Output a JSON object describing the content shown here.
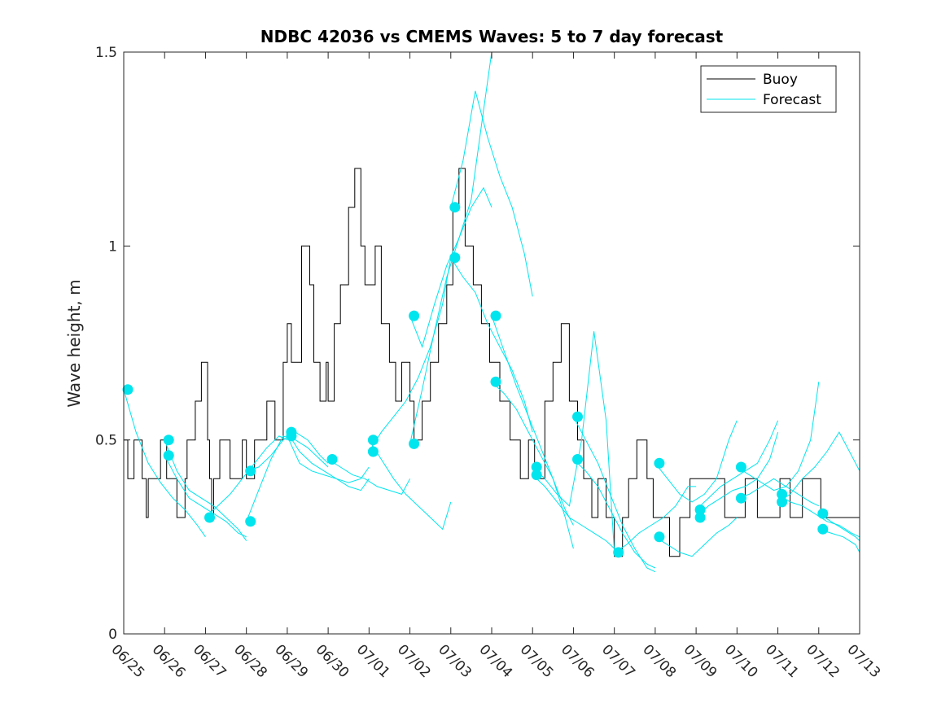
{
  "chart_data": {
    "type": "line",
    "title": "NDBC 42036 vs CMEMS Waves: 5 to 7 day forecast",
    "xlabel": "",
    "ylabel": "Wave height, m",
    "xlim": [
      "06/25",
      "07/13"
    ],
    "ylim": [
      0,
      1.5
    ],
    "x_tick_labels": [
      "06/25",
      "06/26",
      "06/27",
      "06/28",
      "06/29",
      "06/30",
      "07/01",
      "07/02",
      "07/03",
      "07/04",
      "07/05",
      "07/06",
      "07/07",
      "07/08",
      "07/09",
      "07/10",
      "07/11",
      "07/12",
      "07/13"
    ],
    "y_ticks": [
      0,
      0.5,
      1,
      1.5
    ],
    "y_tick_labels": [
      "0",
      "0.5",
      "1",
      "1.5"
    ],
    "legend": {
      "placement": "top-right",
      "entries": [
        "Buoy",
        "Forecast"
      ]
    },
    "colors": {
      "Buoy": "#000000",
      "Forecast": "#00e5ee"
    },
    "series": [
      {
        "name": "Buoy",
        "style": "step",
        "x": [
          0,
          0.1,
          0.25,
          0.45,
          0.55,
          0.6,
          0.9,
          1.05,
          1.3,
          1.5,
          1.55,
          1.75,
          1.9,
          2.05,
          2.1,
          2.15,
          2.2,
          2.35,
          2.6,
          2.9,
          3.0,
          3.2,
          3.5,
          3.7,
          3.9,
          4.0,
          4.1,
          4.35,
          4.55,
          4.65,
          4.8,
          4.95,
          5.0,
          5.15,
          5.3,
          5.5,
          5.65,
          5.8,
          5.9,
          6.15,
          6.3,
          6.5,
          6.65,
          6.8,
          7.0,
          7.1,
          7.3,
          7.5,
          7.7,
          7.9,
          8.05,
          8.2,
          8.35,
          8.55,
          8.75,
          8.95,
          9.2,
          9.45,
          9.7,
          9.9,
          10.05,
          10.3,
          10.5,
          10.7,
          10.9,
          11.1,
          11.25,
          11.45,
          11.6,
          11.8,
          12.0,
          12.2,
          12.35,
          12.55,
          12.8,
          12.95,
          13.1,
          13.35,
          13.6,
          13.85,
          14.1,
          14.4,
          14.7,
          15.0,
          15.2,
          15.5,
          15.8,
          16.05,
          16.3,
          16.6,
          16.8,
          17.05,
          17.35,
          17.6,
          17.8,
          18.0
        ],
        "y": [
          0.5,
          0.4,
          0.5,
          0.4,
          0.3,
          0.4,
          0.5,
          0.4,
          0.3,
          0.4,
          0.5,
          0.6,
          0.7,
          0.5,
          0.4,
          0.3,
          0.4,
          0.5,
          0.4,
          0.5,
          0.4,
          0.5,
          0.6,
          0.5,
          0.7,
          0.8,
          0.7,
          1.0,
          0.9,
          0.7,
          0.6,
          0.7,
          0.6,
          0.8,
          0.9,
          1.1,
          1.2,
          1.0,
          0.9,
          1.0,
          0.8,
          0.7,
          0.6,
          0.7,
          0.6,
          0.5,
          0.6,
          0.7,
          0.8,
          0.9,
          1.1,
          1.2,
          1.0,
          0.9,
          0.8,
          0.7,
          0.6,
          0.5,
          0.4,
          0.5,
          0.4,
          0.6,
          0.7,
          0.8,
          0.6,
          0.5,
          0.4,
          0.3,
          0.4,
          0.3,
          0.2,
          0.3,
          0.4,
          0.5,
          0.4,
          0.3,
          0.3,
          0.2,
          0.3,
          0.4,
          0.4,
          0.4,
          0.3,
          0.3,
          0.4,
          0.3,
          0.3,
          0.4,
          0.3,
          0.4,
          0.4,
          0.3,
          0.3,
          0.3,
          0.3,
          0.3
        ]
      },
      {
        "name": "Forecast",
        "segments": [
          {
            "x": [
              0.0,
              0.3,
              0.6,
              0.9,
              1.2,
              1.5,
              1.8,
              2.0
            ],
            "y": [
              0.63,
              0.52,
              0.44,
              0.39,
              0.35,
              0.32,
              0.28,
              0.25
            ]
          },
          {
            "x": [
              1.0,
              1.3,
              1.6,
              1.9,
              2.2,
              2.5,
              2.8,
              3.0
            ],
            "y": [
              0.5,
              0.42,
              0.37,
              0.35,
              0.33,
              0.3,
              0.27,
              0.24
            ]
          },
          {
            "x": [
              1.0,
              1.3,
              1.6,
              1.9,
              2.2,
              2.5,
              2.8,
              3.0
            ],
            "y": [
              0.46,
              0.4,
              0.35,
              0.33,
              0.31,
              0.29,
              0.26,
              0.25
            ]
          },
          {
            "x": [
              2.0,
              2.3,
              2.6,
              2.9,
              3.2,
              3.5,
              3.8,
              4.0
            ],
            "y": [
              0.3,
              0.33,
              0.36,
              0.4,
              0.44,
              0.48,
              0.51,
              0.5
            ]
          },
          {
            "x": [
              3.0,
              3.3,
              3.6,
              3.9,
              4.2,
              4.5,
              4.8,
              5.0
            ],
            "y": [
              0.42,
              0.43,
              0.46,
              0.5,
              0.52,
              0.5,
              0.46,
              0.44
            ]
          },
          {
            "x": [
              3.0,
              3.3,
              3.6,
              3.9,
              4.2,
              4.5,
              4.8,
              5.0
            ],
            "y": [
              0.29,
              0.37,
              0.45,
              0.51,
              0.5,
              0.48,
              0.45,
              0.43
            ]
          },
          {
            "x": [
              4.0,
              4.3,
              4.6,
              4.9,
              5.2,
              5.5,
              5.8,
              6.0
            ],
            "y": [
              0.52,
              0.47,
              0.44,
              0.42,
              0.4,
              0.38,
              0.37,
              0.4
            ]
          },
          {
            "x": [
              4.0,
              4.3,
              4.6,
              4.9,
              5.2,
              5.5,
              5.8,
              6.0
            ],
            "y": [
              0.51,
              0.44,
              0.42,
              0.41,
              0.4,
              0.39,
              0.4,
              0.43
            ]
          },
          {
            "x": [
              5.0,
              5.3,
              5.6,
              5.9,
              6.2,
              6.5,
              6.8,
              7.0
            ],
            "y": [
              0.45,
              0.43,
              0.41,
              0.4,
              0.38,
              0.37,
              0.36,
              0.4
            ]
          },
          {
            "x": [
              6.0,
              6.3,
              6.6,
              6.9,
              7.2,
              7.5,
              7.8,
              8.0
            ],
            "y": [
              0.5,
              0.45,
              0.4,
              0.36,
              0.33,
              0.3,
              0.27,
              0.34
            ]
          },
          {
            "x": [
              6.0,
              6.3,
              6.6,
              6.9,
              7.2,
              7.5,
              7.8,
              8.0
            ],
            "y": [
              0.47,
              0.52,
              0.56,
              0.6,
              0.66,
              0.74,
              0.85,
              0.97
            ]
          },
          {
            "x": [
              7.0,
              7.3,
              7.6,
              7.9,
              8.2,
              8.5,
              8.8,
              9.0
            ],
            "y": [
              0.82,
              0.74,
              0.85,
              0.95,
              1.02,
              1.12,
              1.35,
              1.5
            ]
          },
          {
            "x": [
              7.0,
              7.3,
              7.6,
              7.9,
              8.2,
              8.5,
              8.8,
              9.0
            ],
            "y": [
              0.49,
              0.63,
              0.78,
              0.92,
              1.02,
              1.1,
              1.15,
              1.1
            ]
          },
          {
            "x": [
              8.0,
              8.3,
              8.6,
              8.9,
              9.2,
              9.5,
              9.8,
              10.0
            ],
            "y": [
              1.1,
              1.22,
              1.4,
              1.28,
              1.18,
              1.1,
              0.98,
              0.87
            ]
          },
          {
            "x": [
              8.0,
              8.3,
              8.6,
              8.9,
              9.2,
              9.5,
              9.8,
              10.0
            ],
            "y": [
              0.97,
              0.92,
              0.88,
              0.8,
              0.74,
              0.68,
              0.6,
              0.52
            ]
          },
          {
            "x": [
              9.0,
              9.3,
              9.6,
              9.9,
              10.2,
              10.5,
              10.8,
              11.0
            ],
            "y": [
              0.82,
              0.73,
              0.64,
              0.56,
              0.48,
              0.4,
              0.3,
              0.22
            ]
          },
          {
            "x": [
              9.0,
              9.3,
              9.6,
              9.9,
              10.2,
              10.5,
              10.8,
              11.0
            ],
            "y": [
              0.65,
              0.62,
              0.58,
              0.52,
              0.46,
              0.4,
              0.32,
              0.28
            ]
          },
          {
            "x": [
              10.0,
              10.3,
              10.6,
              10.9,
              11.2,
              11.5,
              11.8,
              12.0
            ],
            "y": [
              0.43,
              0.4,
              0.36,
              0.33,
              0.5,
              0.78,
              0.55,
              0.21
            ]
          },
          {
            "x": [
              10.0,
              10.3,
              10.6,
              10.9,
              11.2,
              11.5,
              11.8,
              12.0
            ],
            "y": [
              0.41,
              0.38,
              0.34,
              0.3,
              0.28,
              0.26,
              0.24,
              0.22
            ]
          },
          {
            "x": [
              11.0,
              11.3,
              11.6,
              11.9,
              12.2,
              12.5,
              12.8,
              13.0
            ],
            "y": [
              0.56,
              0.5,
              0.44,
              0.36,
              0.28,
              0.22,
              0.17,
              0.16
            ]
          },
          {
            "x": [
              11.0,
              11.3,
              11.6,
              11.9,
              12.2,
              12.5,
              12.8,
              13.0
            ],
            "y": [
              0.45,
              0.42,
              0.38,
              0.32,
              0.26,
              0.21,
              0.18,
              0.17
            ]
          },
          {
            "x": [
              12.0,
              12.3,
              12.6,
              12.9,
              13.2,
              13.5,
              13.8,
              14.0
            ],
            "y": [
              0.21,
              0.23,
              0.26,
              0.28,
              0.3,
              0.33,
              0.38,
              0.38
            ]
          },
          {
            "x": [
              13.0,
              13.3,
              13.6,
              13.9,
              14.2,
              14.5,
              14.8,
              15.0
            ],
            "y": [
              0.44,
              0.4,
              0.36,
              0.34,
              0.36,
              0.4,
              0.5,
              0.55
            ]
          },
          {
            "x": [
              13.0,
              13.3,
              13.6,
              13.9,
              14.2,
              14.5,
              14.8,
              15.0
            ],
            "y": [
              0.25,
              0.23,
              0.21,
              0.2,
              0.23,
              0.26,
              0.28,
              0.3
            ]
          },
          {
            "x": [
              14.0,
              14.3,
              14.6,
              14.9,
              15.2,
              15.5,
              15.8,
              16.0
            ],
            "y": [
              0.32,
              0.35,
              0.38,
              0.4,
              0.42,
              0.44,
              0.5,
              0.55
            ]
          },
          {
            "x": [
              14.0,
              14.3,
              14.6,
              14.9,
              15.2,
              15.5,
              15.8,
              16.0
            ],
            "y": [
              0.3,
              0.33,
              0.35,
              0.37,
              0.38,
              0.4,
              0.45,
              0.52
            ]
          },
          {
            "x": [
              15.0,
              15.3,
              15.6,
              15.9,
              16.2,
              16.5,
              16.8,
              17.0
            ],
            "y": [
              0.43,
              0.41,
              0.39,
              0.37,
              0.38,
              0.42,
              0.5,
              0.65
            ]
          },
          {
            "x": [
              15.0,
              15.3,
              15.6,
              15.9,
              16.2,
              16.5,
              16.8,
              17.0
            ],
            "y": [
              0.35,
              0.36,
              0.38,
              0.4,
              0.38,
              0.36,
              0.34,
              0.33
            ]
          },
          {
            "x": [
              16.0,
              16.3,
              16.6,
              16.9,
              17.2,
              17.5,
              17.8,
              18.0
            ],
            "y": [
              0.36,
              0.34,
              0.33,
              0.31,
              0.29,
              0.28,
              0.26,
              0.25
            ]
          },
          {
            "x": [
              16.0,
              16.3,
              16.6,
              16.9,
              17.2,
              17.5,
              17.8,
              18.0
            ],
            "y": [
              0.34,
              0.36,
              0.4,
              0.43,
              0.47,
              0.52,
              0.46,
              0.42
            ]
          },
          {
            "x": [
              17.0,
              17.3,
              17.6,
              17.9,
              18.0
            ],
            "y": [
              0.31,
              0.29,
              0.27,
              0.25,
              0.24
            ]
          },
          {
            "x": [
              17.0,
              17.3,
              17.6,
              17.9,
              18.0
            ],
            "y": [
              0.27,
              0.26,
              0.25,
              0.23,
              0.21
            ]
          }
        ],
        "markers": {
          "x": [
            0.1,
            1.1,
            1.1,
            2.1,
            3.1,
            3.1,
            4.1,
            4.1,
            5.1,
            6.1,
            6.1,
            7.1,
            7.1,
            8.1,
            8.1,
            9.1,
            9.1,
            10.1,
            10.1,
            11.1,
            11.1,
            12.1,
            13.1,
            13.1,
            14.1,
            14.1,
            15.1,
            15.1,
            16.1,
            16.1,
            17.1,
            17.1
          ],
          "y": [
            0.63,
            0.5,
            0.46,
            0.3,
            0.42,
            0.29,
            0.52,
            0.51,
            0.45,
            0.5,
            0.47,
            0.82,
            0.49,
            1.1,
            0.97,
            0.82,
            0.65,
            0.43,
            0.41,
            0.56,
            0.45,
            0.21,
            0.44,
            0.25,
            0.32,
            0.3,
            0.43,
            0.35,
            0.36,
            0.34,
            0.31,
            0.27
          ]
        }
      }
    ]
  }
}
